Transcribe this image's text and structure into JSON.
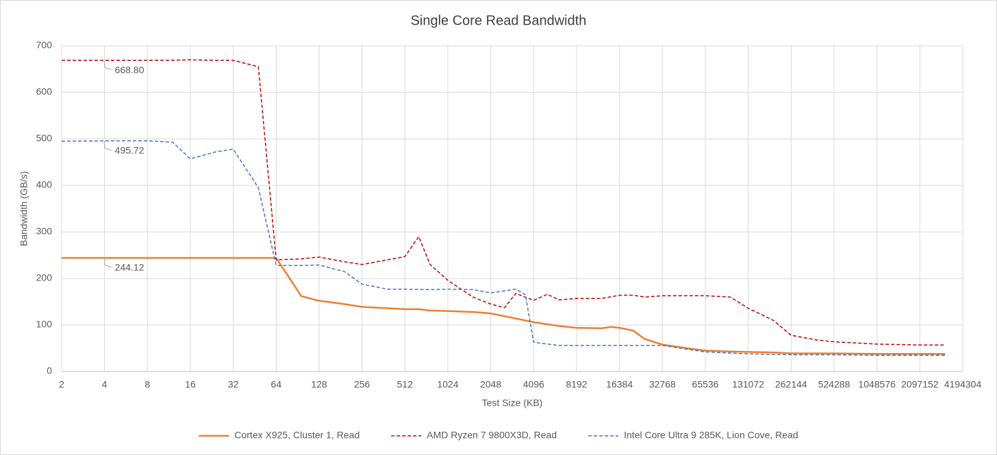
{
  "chart_data": {
    "type": "line",
    "title": "Single Core Read Bandwidth",
    "x_label": "Test Size (KB)",
    "y_label": "Bandwidth (GB/s)",
    "xlim": [
      2,
      4194304
    ],
    "xscale": "log2",
    "xticks": [
      2,
      4,
      8,
      16,
      32,
      64,
      128,
      256,
      512,
      1024,
      2048,
      4096,
      8192,
      16384,
      32768,
      65536,
      131072,
      262144,
      524288,
      1048576,
      2097152,
      4194304
    ],
    "ylim": [
      0,
      700
    ],
    "yticks": [
      0,
      100,
      200,
      300,
      400,
      500,
      600,
      700
    ],
    "grid": true,
    "legend": "bottom",
    "series": [
      {
        "name": "Cortex X925, Cluster 1, Read",
        "color": "#ed7d31",
        "dashed": false,
        "x": [
          2,
          4,
          8,
          12,
          16,
          24,
          32,
          48,
          64,
          96,
          128,
          192,
          256,
          384,
          512,
          640,
          768,
          1024,
          1536,
          2048,
          3072,
          4096,
          6144,
          8192,
          12288,
          14336,
          16384,
          20480,
          24576,
          32768,
          49152,
          65536,
          98304,
          131072,
          196608,
          262144,
          393216,
          524288,
          1048576,
          2097152,
          3145728
        ],
        "values": [
          244.12,
          244.12,
          244.12,
          244.12,
          244.12,
          244.12,
          244.12,
          244.12,
          244.12,
          162,
          152,
          145,
          139,
          136,
          134,
          134,
          131,
          130,
          128,
          125,
          114,
          106,
          98,
          94,
          93,
          96,
          94,
          88,
          70,
          58,
          50,
          45,
          43,
          42,
          41,
          39,
          39,
          39,
          38,
          38,
          38
        ],
        "value_labels": [
          null,
          "244.12",
          null,
          null,
          null,
          null,
          null,
          null,
          null,
          null,
          null,
          null,
          null,
          null,
          null,
          null,
          null,
          null,
          null,
          null,
          null,
          null,
          null,
          null,
          null,
          null,
          null,
          null,
          null,
          null,
          null,
          null,
          null,
          null,
          null,
          null,
          null,
          null,
          null,
          null,
          null
        ]
      },
      {
        "name": "AMD Ryzen 7 9800X3D, Read",
        "color": "#c00000",
        "dashed": true,
        "x": [
          2,
          4,
          8,
          12,
          16,
          24,
          32,
          48,
          64,
          96,
          128,
          192,
          256,
          384,
          512,
          640,
          768,
          1024,
          1536,
          2048,
          2560,
          3072,
          4096,
          5120,
          6144,
          8192,
          12288,
          16384,
          20480,
          24576,
          32768,
          65536,
          98304,
          131072,
          196608,
          262144,
          393216,
          524288,
          1048576,
          2097152,
          3145728
        ],
        "values": [
          668.8,
          668.8,
          668.8,
          669,
          670,
          668.8,
          668.8,
          655,
          240,
          242,
          246,
          236,
          230,
          240,
          247,
          290,
          230,
          196,
          160,
          145,
          137,
          168,
          153,
          166,
          154,
          157,
          157,
          164,
          164,
          160,
          163,
          163,
          160,
          136,
          110,
          78,
          68,
          64,
          59,
          57,
          57
        ],
        "value_labels": [
          null,
          "668.80",
          null,
          null,
          null,
          null,
          null,
          null,
          null,
          null,
          null,
          null,
          null,
          null,
          null,
          null,
          null,
          null,
          null,
          null,
          null,
          null,
          null,
          null,
          null,
          null,
          null,
          null,
          null,
          null,
          null,
          null,
          null,
          null,
          null,
          null,
          null,
          null,
          null,
          null,
          null
        ]
      },
      {
        "name": "Intel Core Ultra 9 285K, Lion Cove, Read",
        "color": "#4472c4",
        "dashed": true,
        "x": [
          2,
          4,
          8,
          12,
          16,
          24,
          32,
          48,
          64,
          96,
          128,
          192,
          256,
          384,
          512,
          768,
          1024,
          1536,
          2048,
          3072,
          3584,
          4096,
          6144,
          8192,
          16384,
          32768,
          65536,
          131072,
          262144,
          524288,
          1048576,
          2097152,
          3145728
        ],
        "values": [
          495,
          495.72,
          496,
          493,
          457,
          472,
          478,
          395,
          228,
          228,
          229,
          215,
          188,
          177,
          177,
          176,
          177,
          176,
          169,
          177,
          165,
          63,
          56,
          56,
          56,
          56,
          42,
          38,
          36,
          36,
          35,
          35,
          35
        ],
        "value_labels": [
          null,
          "495.72",
          null,
          null,
          null,
          null,
          null,
          null,
          null,
          null,
          null,
          null,
          null,
          null,
          null,
          null,
          null,
          null,
          null,
          null,
          null,
          null,
          null,
          null,
          null,
          null,
          null,
          null,
          null,
          null,
          null,
          null,
          null
        ]
      }
    ]
  }
}
